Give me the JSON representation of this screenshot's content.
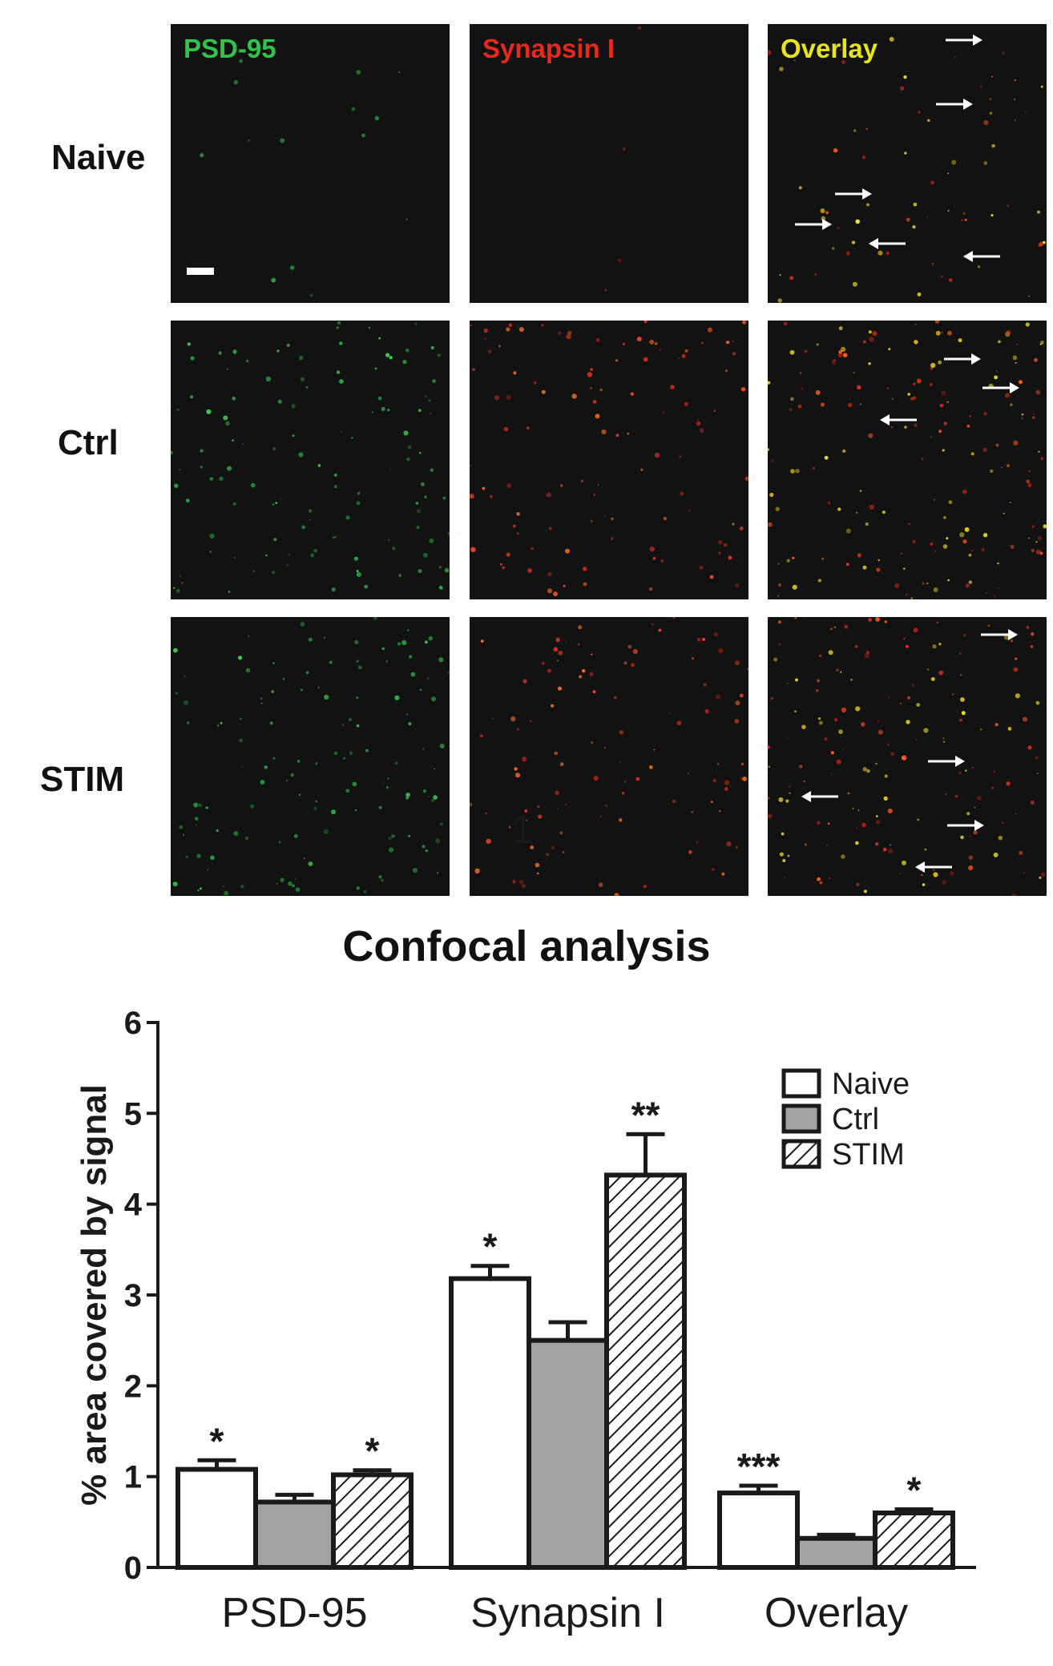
{
  "micrographs": {
    "columns": [
      {
        "label": "PSD-95",
        "color": "#33c24a"
      },
      {
        "label": "Synapsin I",
        "color": "#e52a1c"
      },
      {
        "label": "Overlay",
        "color": "#e8e41a"
      }
    ],
    "rows": [
      {
        "label": "Naive"
      },
      {
        "label": "Ctrl"
      },
      {
        "label": "STIM"
      }
    ],
    "stray_mark": "1"
  },
  "chart_data": {
    "type": "bar",
    "title": "Confocal analysis",
    "xlabel": "",
    "ylabel": "% area covered by signal",
    "ylim": [
      0,
      6
    ],
    "yticks": [
      "0",
      "1",
      "2",
      "3",
      "4",
      "5",
      "6"
    ],
    "categories": [
      "PSD-95",
      "Synapsin I",
      "Overlay"
    ],
    "series": [
      {
        "name": "Naive",
        "fill": "#ffffff",
        "pattern": "none",
        "values": [
          1.08,
          3.18,
          0.82
        ],
        "errors": [
          0.1,
          0.14,
          0.08
        ],
        "significance": [
          "*",
          "*",
          "***"
        ]
      },
      {
        "name": "Ctrl",
        "fill": "#a3a3a3",
        "pattern": "none",
        "values": [
          0.72,
          2.5,
          0.32
        ],
        "errors": [
          0.08,
          0.2,
          0.04
        ],
        "significance": [
          "",
          "",
          ""
        ]
      },
      {
        "name": "STIM",
        "fill": "#ffffff",
        "pattern": "hatch",
        "values": [
          1.02,
          4.32,
          0.6
        ],
        "errors": [
          0.05,
          0.45,
          0.04
        ],
        "significance": [
          "*",
          "**",
          "*"
        ]
      }
    ],
    "legend_position": "top-right",
    "grid": false
  }
}
